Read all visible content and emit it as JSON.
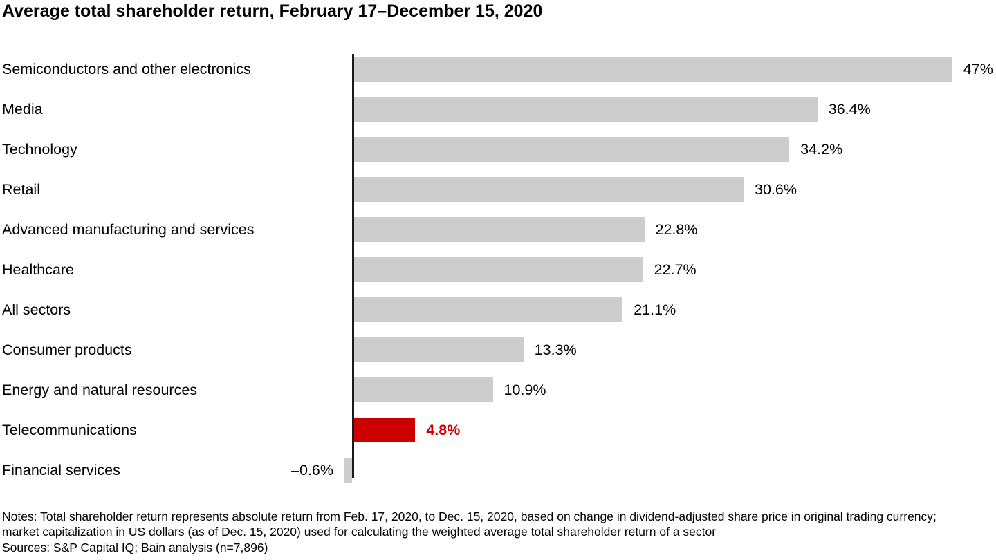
{
  "title": "Average total shareholder return, February 17–December 15, 2020",
  "notes": {
    "line1": "Notes: Total shareholder return represents absolute return from Feb. 17, 2020, to Dec. 15, 2020, based on change in dividend-adjusted share price in original trading currency; market capitalization in US dollars (as of Dec. 15, 2020) used for calculating the weighted average total shareholder return of a sector",
    "line2": "Sources: S&P Capital IQ; Bain analysis (n=7,896)"
  },
  "chart_data": {
    "type": "bar",
    "orientation": "horizontal",
    "title": "Average total shareholder return, February 17–December 15, 2020",
    "xlabel": "",
    "ylabel": "",
    "xlim": [
      -2,
      50
    ],
    "grid": false,
    "legend": "none",
    "unit": "%",
    "categories": [
      "Semiconductors and other electronics",
      "Media",
      "Technology",
      "Retail",
      "Advanced manufacturing and services",
      "Healthcare",
      "All sectors",
      "Consumer products",
      "Energy and natural resources",
      "Telecommunications",
      "Financial services"
    ],
    "values": [
      47,
      36.4,
      34.2,
      30.6,
      22.8,
      22.7,
      21.1,
      13.3,
      10.9,
      4.8,
      -0.6
    ],
    "value_labels": [
      "47%",
      "36.4%",
      "34.2%",
      "30.6%",
      "22.8%",
      "22.7%",
      "21.1%",
      "13.3%",
      "10.9%",
      "4.8%",
      "–0.6%"
    ],
    "highlight_index": 9,
    "colors": {
      "bar": "#cdcdcd",
      "highlight": "#cc0000",
      "highlight_text": "#cc0000",
      "axis": "#1a1a1a",
      "text": "#000000"
    }
  }
}
